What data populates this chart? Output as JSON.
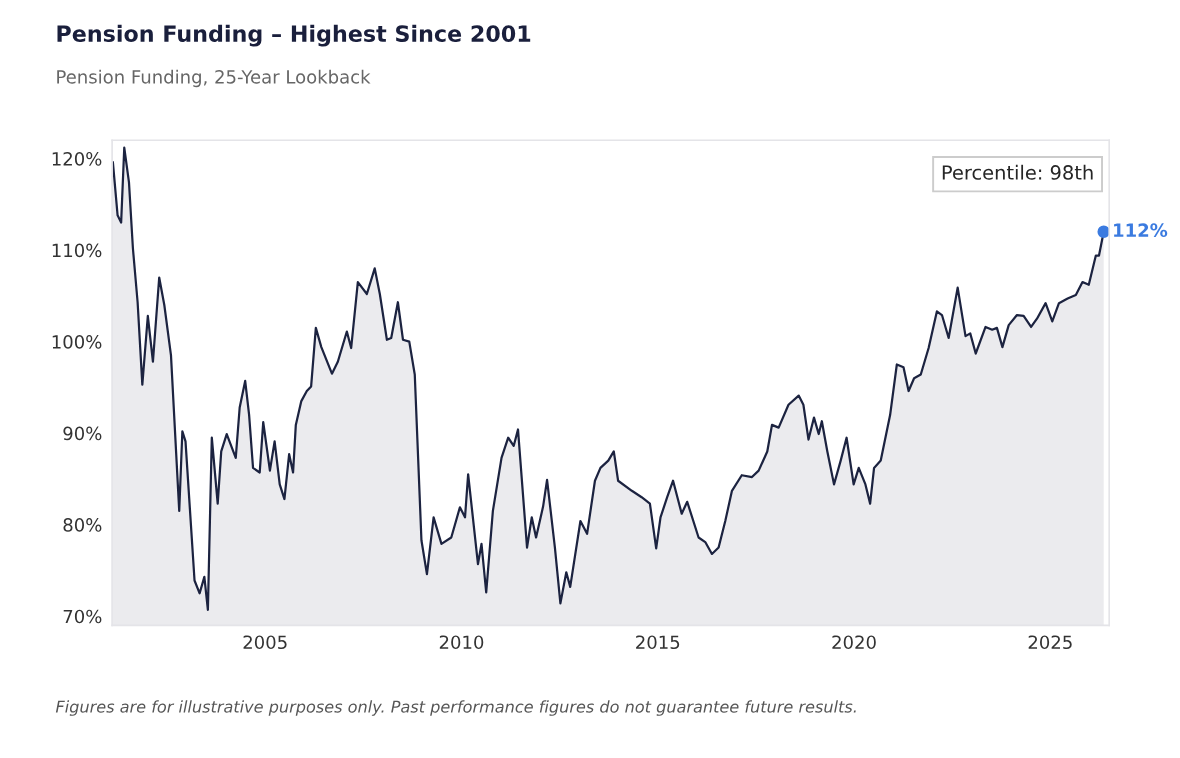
{
  "chart_data": {
    "type": "area",
    "title": "Pension Funding – Highest Since 2001",
    "subtitle": "Pension Funding, 25-Year Lookback",
    "annotations": [
      "Percentile: 98th",
      {
        "text": "112%",
        "x": 2026.36,
        "y": 112
      },
      "Figures are for illustrative purposes only. Past performance figures do not guarantee future results."
    ],
    "x": [
      2001.12,
      2001.24,
      2001.33,
      2001.41,
      2001.53,
      2001.63,
      2001.75,
      2001.87,
      2002.01,
      2002.14,
      2002.3,
      2002.43,
      2002.6,
      2002.81,
      2002.89,
      2002.97,
      2003.2,
      2003.33,
      2003.45,
      2003.54,
      2003.64,
      2003.79,
      2003.88,
      2004.02,
      2004.25,
      2004.35,
      2004.49,
      2004.59,
      2004.69,
      2004.86,
      2004.95,
      2005.12,
      2005.24,
      2005.37,
      2005.49,
      2005.61,
      2005.71,
      2005.78,
      2005.92,
      2006.06,
      2006.17,
      2006.29,
      2006.43,
      2006.7,
      2006.85,
      2007.08,
      2007.19,
      2007.36,
      2007.59,
      2007.79,
      2007.92,
      2008.1,
      2008.21,
      2008.38,
      2008.51,
      2008.67,
      2008.81,
      2008.98,
      2009.12,
      2009.29,
      2009.49,
      2009.74,
      2009.96,
      2010.09,
      2010.17,
      2010.42,
      2010.51,
      2010.63,
      2010.8,
      2011.02,
      2011.19,
      2011.33,
      2011.44,
      2011.67,
      2011.79,
      2011.9,
      2012.08,
      2012.18,
      2012.38,
      2012.52,
      2012.67,
      2012.77,
      2013.03,
      2013.2,
      2013.4,
      2013.54,
      2013.74,
      2013.88,
      2013.99,
      2014.34,
      2014.59,
      2014.8,
      2014.96,
      2015.07,
      2015.24,
      2015.39,
      2015.61,
      2015.75,
      2016.04,
      2016.21,
      2016.38,
      2016.55,
      2016.72,
      2016.89,
      2017.14,
      2017.4,
      2017.57,
      2017.79,
      2017.91,
      2018.08,
      2018.33,
      2018.59,
      2018.71,
      2018.84,
      2018.98,
      2019.1,
      2019.18,
      2019.32,
      2019.49,
      2019.66,
      2019.81,
      2019.99,
      2020.12,
      2020.29,
      2020.41,
      2020.51,
      2020.68,
      2020.92,
      2021.09,
      2021.26,
      2021.39,
      2021.53,
      2021.7,
      2021.9,
      2022.11,
      2022.24,
      2022.41,
      2022.64,
      2022.84,
      2022.96,
      2023.1,
      2023.35,
      2023.52,
      2023.64,
      2023.78,
      2023.94,
      2024.15,
      2024.32,
      2024.51,
      2024.66,
      2024.88,
      2025.05,
      2025.22,
      2025.44,
      2025.65,
      2025.82,
      2025.98,
      2026.16,
      2026.24,
      2026.36
    ],
    "series": [
      {
        "color": "#1c2340",
        "values": [
          119.6,
          113.8,
          113.0,
          121.2,
          117.4,
          110.2,
          104.3,
          95.3,
          102.8,
          97.8,
          107.0,
          104.0,
          98.5,
          81.5,
          90.2,
          89.1,
          73.9,
          72.5,
          74.3,
          70.7,
          89.5,
          82.3,
          88.0,
          89.9,
          87.3,
          92.8,
          95.7,
          92.0,
          86.2,
          85.7,
          91.2,
          85.9,
          89.1,
          84.4,
          82.8,
          87.7,
          85.7,
          90.9,
          93.5,
          94.6,
          95.1,
          101.5,
          99.4,
          96.5,
          97.8,
          101.1,
          99.3,
          106.5,
          105.2,
          108.0,
          105.2,
          100.2,
          100.4,
          104.3,
          100.2,
          100.0,
          96.4,
          78.3,
          74.6,
          80.8,
          77.9,
          78.6,
          81.9,
          80.8,
          85.5,
          75.7,
          77.9,
          72.6,
          81.5,
          87.3,
          89.5,
          88.6,
          90.4,
          77.5,
          80.8,
          78.6,
          82.0,
          84.9,
          77.5,
          71.4,
          74.8,
          73.2,
          80.4,
          79.0,
          84.8,
          86.2,
          87.0,
          88.0,
          84.8,
          83.7,
          83.0,
          82.3,
          77.4,
          80.8,
          83.0,
          84.8,
          81.2,
          82.5,
          78.6,
          78.1,
          76.8,
          77.5,
          80.4,
          83.7,
          85.4,
          85.2,
          85.9,
          88.0,
          90.9,
          90.6,
          93.1,
          94.1,
          93.1,
          89.3,
          91.7,
          89.9,
          91.3,
          88.0,
          84.4,
          87.0,
          89.5,
          84.4,
          86.2,
          84.4,
          82.3,
          86.2,
          87.0,
          92.0,
          97.5,
          97.2,
          94.6,
          96.0,
          96.4,
          99.3,
          103.3,
          102.9,
          100.4,
          105.9,
          100.6,
          100.9,
          98.7,
          101.6,
          101.3,
          101.5,
          99.4,
          101.8,
          102.9,
          102.8,
          101.6,
          102.5,
          104.2,
          102.2,
          104.2,
          104.7,
          105.1,
          106.5,
          106.2,
          109.4,
          109.4,
          112
        ]
      }
    ],
    "xlim": [
      2001.1,
      2026.5
    ],
    "ylim": [
      69,
      122
    ],
    "xticks": [
      2005,
      2010,
      2015,
      2020,
      2025
    ],
    "yticks": [
      {
        "value": 70,
        "label": "70%"
      },
      {
        "value": 80,
        "label": "80%"
      },
      {
        "value": 90,
        "label": "90%"
      },
      {
        "value": 100,
        "label": "100%"
      },
      {
        "value": 110,
        "label": "110%"
      },
      {
        "value": 120,
        "label": "120%"
      }
    ],
    "grid": false,
    "legend": false
  }
}
